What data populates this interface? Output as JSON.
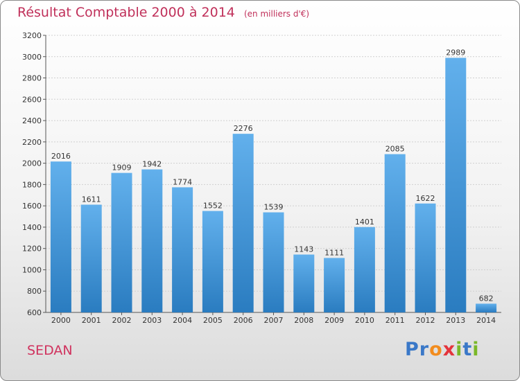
{
  "title": "Résultat Comptable 2000 à 2014",
  "unit_note": "(en milliers d'€)",
  "location_label": "SEDAN",
  "logo": {
    "letters": [
      "P",
      "r",
      "o",
      "x",
      "i",
      "t",
      "i"
    ],
    "colors": [
      "#3a78c8",
      "#3a78c8",
      "#f28c1e",
      "#e4343c",
      "#7ab828",
      "#3a78c8",
      "#7ab828"
    ]
  },
  "colors": {
    "bar_top": "#62b0ec",
    "bar_bottom": "#2a7cc0",
    "grid": "#cfcfcf",
    "axis": "#555555",
    "text": "#333333"
  },
  "chart_data": {
    "type": "bar",
    "title": "Résultat Comptable 2000 à 2014",
    "xlabel": "",
    "ylabel": "",
    "ylim": [
      600,
      3200
    ],
    "yticks": [
      600,
      800,
      1000,
      1200,
      1400,
      1600,
      1800,
      2000,
      2200,
      2400,
      2600,
      2800,
      3000,
      3200
    ],
    "grid": true,
    "categories": [
      "2000",
      "2001",
      "2002",
      "2003",
      "2004",
      "2005",
      "2006",
      "2007",
      "2008",
      "2009",
      "2010",
      "2011",
      "2012",
      "2013",
      "2014"
    ],
    "values": [
      2016,
      1611,
      1909,
      1942,
      1774,
      1552,
      2276,
      1539,
      1143,
      1111,
      1401,
      2085,
      1622,
      2989,
      682
    ]
  }
}
